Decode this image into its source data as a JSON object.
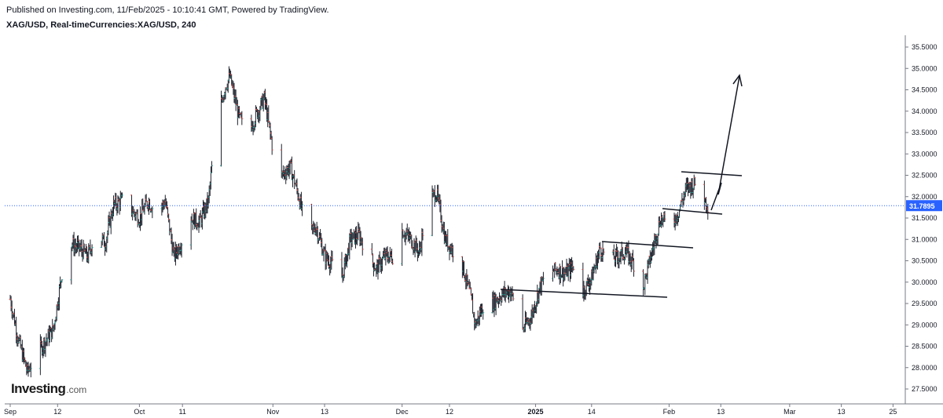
{
  "header": {
    "published_line": "Published on Investing.com, 11/Feb/2025 - 10:10:41 GMT, Powered by TradingView.",
    "symbol_line": "XAG/USD, Real-timeCurrencies:XAG/USD, 240"
  },
  "logo": {
    "brand": "Investing",
    "domain": ".com"
  },
  "colors": {
    "up": "#26a69a",
    "down": "#ef5350",
    "bar": "#1e222d",
    "price_line": "#2962ff",
    "price_label_bg": "#2962ff",
    "axis": "#787b86"
  },
  "chart_data": {
    "type": "ohlc",
    "title": "XAG/USD, Real-timeCurrencies:XAG/USD, 240",
    "ylim": [
      27.25,
      35.75
    ],
    "y_ticks": [
      "27.5000",
      "28.0000",
      "28.5000",
      "29.0000",
      "29.5000",
      "30.0000",
      "30.5000",
      "31.0000",
      "31.5000",
      "32.0000",
      "32.5000",
      "33.0000",
      "33.5000",
      "34.0000",
      "34.5000",
      "35.0000",
      "35.5000"
    ],
    "x_ticks": [
      {
        "label": "Sep",
        "day": 0
      },
      {
        "label": "12",
        "day": 11
      },
      {
        "label": "Oct",
        "day": 30
      },
      {
        "label": "11",
        "day": 40
      },
      {
        "label": "Nov",
        "day": 61
      },
      {
        "label": "13",
        "day": 73
      },
      {
        "label": "Dec",
        "day": 91
      },
      {
        "label": "12",
        "day": 102
      },
      {
        "label": "2025",
        "day": 122
      },
      {
        "label": "14",
        "day": 135
      },
      {
        "label": "Feb",
        "day": 153
      },
      {
        "label": "13",
        "day": 165
      },
      {
        "label": "Mar",
        "day": 181
      },
      {
        "label": "13",
        "day": 193
      },
      {
        "label": "25",
        "day": 205
      }
    ],
    "current_price": "31.7895",
    "daily_closes": [
      {
        "day": 0,
        "close": 29.6
      },
      {
        "day": 2,
        "close": 28.6
      },
      {
        "day": 4,
        "close": 27.9
      },
      {
        "day": 6,
        "close": 28.3
      },
      {
        "day": 8,
        "close": 28.6
      },
      {
        "day": 10,
        "close": 28.9
      },
      {
        "day": 12,
        "close": 30.2
      },
      {
        "day": 14,
        "close": 30.9
      },
      {
        "day": 16,
        "close": 30.8
      },
      {
        "day": 18,
        "close": 30.6
      },
      {
        "day": 20,
        "close": 31.2
      },
      {
        "day": 22,
        "close": 30.9
      },
      {
        "day": 24,
        "close": 31.8
      },
      {
        "day": 26,
        "close": 31.9
      },
      {
        "day": 28,
        "close": 31.7
      },
      {
        "day": 30,
        "close": 31.5
      },
      {
        "day": 32,
        "close": 31.9
      },
      {
        "day": 34,
        "close": 31.6
      },
      {
        "day": 36,
        "close": 31.9
      },
      {
        "day": 38,
        "close": 30.6
      },
      {
        "day": 40,
        "close": 31.0
      },
      {
        "day": 42,
        "close": 31.5
      },
      {
        "day": 44,
        "close": 31.4
      },
      {
        "day": 46,
        "close": 31.9
      },
      {
        "day": 48,
        "close": 33.8
      },
      {
        "day": 50,
        "close": 34.6
      },
      {
        "day": 51,
        "close": 34.8
      },
      {
        "day": 53,
        "close": 33.9
      },
      {
        "day": 55,
        "close": 33.4
      },
      {
        "day": 57,
        "close": 33.9
      },
      {
        "day": 59,
        "close": 34.3
      },
      {
        "day": 61,
        "close": 33.1
      },
      {
        "day": 63,
        "close": 32.5
      },
      {
        "day": 65,
        "close": 32.7
      },
      {
        "day": 67,
        "close": 32.0
      },
      {
        "day": 69,
        "close": 31.1
      },
      {
        "day": 71,
        "close": 31.3
      },
      {
        "day": 73,
        "close": 30.6
      },
      {
        "day": 75,
        "close": 30.4
      },
      {
        "day": 77,
        "close": 30.1
      },
      {
        "day": 79,
        "close": 31.0
      },
      {
        "day": 81,
        "close": 31.1
      },
      {
        "day": 83,
        "close": 30.7
      },
      {
        "day": 85,
        "close": 30.3
      },
      {
        "day": 87,
        "close": 30.6
      },
      {
        "day": 89,
        "close": 30.6
      },
      {
        "day": 91,
        "close": 31.2
      },
      {
        "day": 93,
        "close": 31.0
      },
      {
        "day": 95,
        "close": 30.7
      },
      {
        "day": 97,
        "close": 31.9
      },
      {
        "day": 99,
        "close": 32.1
      },
      {
        "day": 101,
        "close": 31.0
      },
      {
        "day": 103,
        "close": 30.7
      },
      {
        "day": 105,
        "close": 30.4
      },
      {
        "day": 107,
        "close": 29.6
      },
      {
        "day": 108,
        "close": 29.0
      },
      {
        "day": 110,
        "close": 29.5
      },
      {
        "day": 112,
        "close": 29.5
      },
      {
        "day": 114,
        "close": 29.7
      },
      {
        "day": 116,
        "close": 29.8
      },
      {
        "day": 118,
        "close": 29.4
      },
      {
        "day": 119,
        "close": 28.9
      },
      {
        "day": 121,
        "close": 29.2
      },
      {
        "day": 123,
        "close": 29.9
      },
      {
        "day": 125,
        "close": 30.2
      },
      {
        "day": 127,
        "close": 30.3
      },
      {
        "day": 129,
        "close": 30.2
      },
      {
        "day": 131,
        "close": 30.4
      },
      {
        "day": 133,
        "close": 29.8
      },
      {
        "day": 135,
        "close": 30.1
      },
      {
        "day": 137,
        "close": 30.8
      },
      {
        "day": 139,
        "close": 30.5
      },
      {
        "day": 141,
        "close": 30.6
      },
      {
        "day": 143,
        "close": 30.7
      },
      {
        "day": 145,
        "close": 30.4
      },
      {
        "day": 147,
        "close": 29.9
      },
      {
        "day": 149,
        "close": 30.7
      },
      {
        "day": 151,
        "close": 31.5
      },
      {
        "day": 153,
        "close": 31.3
      },
      {
        "day": 155,
        "close": 31.6
      },
      {
        "day": 157,
        "close": 32.2
      },
      {
        "day": 159,
        "close": 32.3
      },
      {
        "day": 161,
        "close": 32.0
      },
      {
        "day": 162,
        "close": 31.8
      }
    ]
  }
}
